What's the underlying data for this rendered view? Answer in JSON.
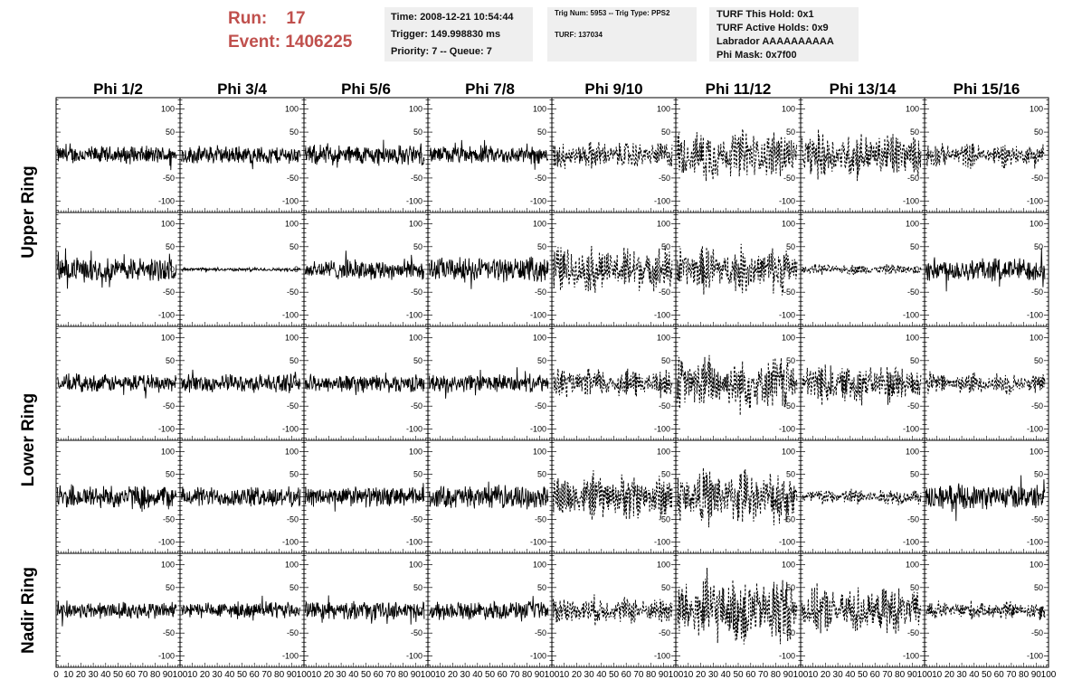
{
  "header": {
    "run_label": "Run:",
    "run_value": "17",
    "event_label": "Event:",
    "event_value": "1406225",
    "info1": [
      "Time: 2008-12-21 10:54:44",
      "Trigger: 149.998830 ms",
      "Priority: 7 -- Queue: 7"
    ],
    "info2": [
      "Trig Num: 5953 -- Trig Type: PPS2",
      "",
      "TURF: 137034"
    ],
    "info3": [
      "TURF This Hold: 0x1",
      "TURF Active Holds: 0x9",
      "Labrador AAAAAAAAAA",
      "Phi Mask: 0x7f00"
    ]
  },
  "chart_data": {
    "type": "line",
    "columns": [
      "Phi 1/2",
      "Phi 3/4",
      "Phi 5/6",
      "Phi 7/8",
      "Phi 9/10",
      "Phi 11/12",
      "Phi 13/14",
      "Phi 15/16"
    ],
    "row_labels": [
      "Upper Ring",
      "Lower Ring",
      "Nadir Ring"
    ],
    "rows": 5,
    "xlim": [
      0,
      100
    ],
    "ylim": [
      -125,
      125
    ],
    "y_ticks": [
      -100,
      -50,
      0,
      50,
      100
    ],
    "y_tick_labels": [
      "-100",
      "-50",
      "0",
      "50",
      "100"
    ],
    "x_tick_text": [
      "0",
      "10",
      "20",
      "30",
      "40",
      "50",
      "60",
      "70",
      "80",
      "90",
      "100"
    ],
    "amplitude": [
      [
        22,
        22,
        25,
        22,
        32,
        60,
        55,
        28
      ],
      [
        30,
        4,
        25,
        30,
        55,
        55,
        12,
        30
      ],
      [
        22,
        22,
        22,
        22,
        35,
        65,
        50,
        25
      ],
      [
        30,
        25,
        25,
        28,
        55,
        65,
        20,
        30
      ],
      [
        22,
        20,
        22,
        22,
        32,
        85,
        55,
        22
      ]
    ],
    "dashed": [
      [
        false,
        false,
        false,
        false,
        true,
        true,
        true,
        true
      ],
      [
        false,
        false,
        false,
        false,
        true,
        true,
        true,
        false
      ],
      [
        false,
        false,
        false,
        false,
        true,
        true,
        true,
        true
      ],
      [
        false,
        false,
        false,
        false,
        true,
        true,
        true,
        false
      ],
      [
        false,
        false,
        false,
        false,
        true,
        true,
        true,
        true
      ]
    ]
  }
}
